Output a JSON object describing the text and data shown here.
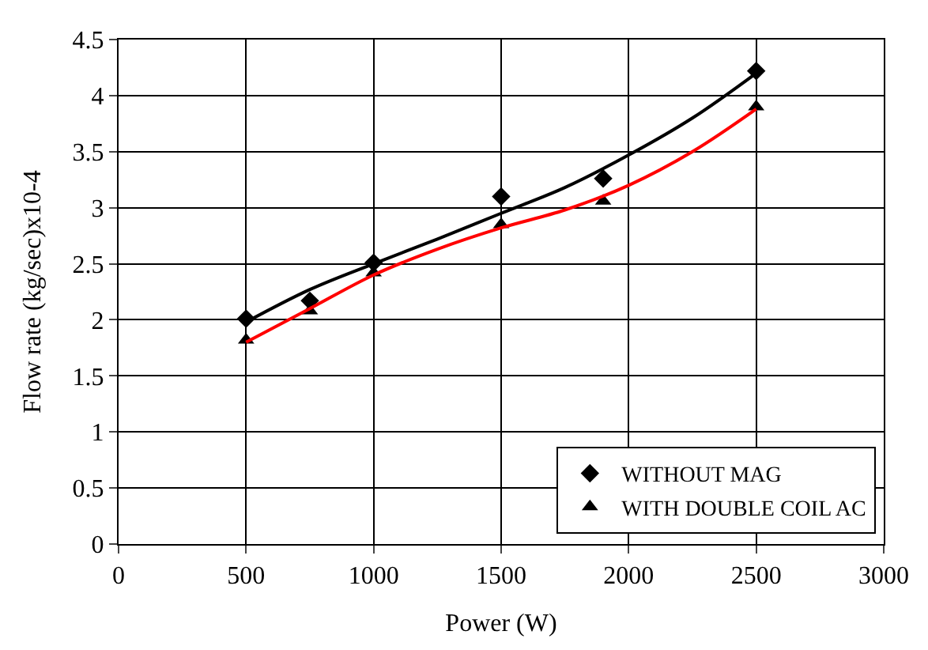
{
  "chart_data": {
    "type": "scatter",
    "xlabel": "Power (W)",
    "ylabel": "Flow rate (kg/sec)x10-4",
    "xlim": [
      0,
      3000
    ],
    "xticks": [
      0,
      500,
      1000,
      1500,
      2000,
      2500,
      3000
    ],
    "ylim": [
      0,
      4.5
    ],
    "yticks": [
      0,
      0.5,
      1,
      1.5,
      2,
      2.5,
      3,
      3.5,
      4,
      4.5
    ],
    "grid": true,
    "legend": "bottom right",
    "series": [
      {
        "name": "WITHOUT MAG",
        "color": "#000000",
        "marker": "diamond",
        "x": [
          500,
          750,
          1000,
          1500,
          1900,
          2500
        ],
        "values": [
          2.01,
          2.17,
          2.51,
          3.1,
          3.26,
          4.22
        ]
      },
      {
        "name": "WITH DOUBLE COIL AC",
        "color": "#000000",
        "marker": "triangle",
        "x": [
          500,
          750,
          1000,
          1500,
          1900,
          2500
        ],
        "values": [
          1.82,
          2.08,
          2.42,
          2.85,
          3.06,
          3.9
        ]
      },
      {
        "type": "line",
        "color": "#000000",
        "x": [
          500,
          750,
          1000,
          1250,
          1500,
          1750,
          2000,
          2250,
          2500
        ],
        "values": [
          1.98,
          2.27,
          2.5,
          2.72,
          2.95,
          3.18,
          3.47,
          3.8,
          4.2
        ]
      },
      {
        "type": "line",
        "color": "#ff0000",
        "x": [
          500,
          750,
          1000,
          1250,
          1500,
          1750,
          2000,
          2250,
          2500
        ],
        "values": [
          1.8,
          2.1,
          2.4,
          2.63,
          2.82,
          2.98,
          3.2,
          3.5,
          3.88
        ]
      }
    ]
  }
}
